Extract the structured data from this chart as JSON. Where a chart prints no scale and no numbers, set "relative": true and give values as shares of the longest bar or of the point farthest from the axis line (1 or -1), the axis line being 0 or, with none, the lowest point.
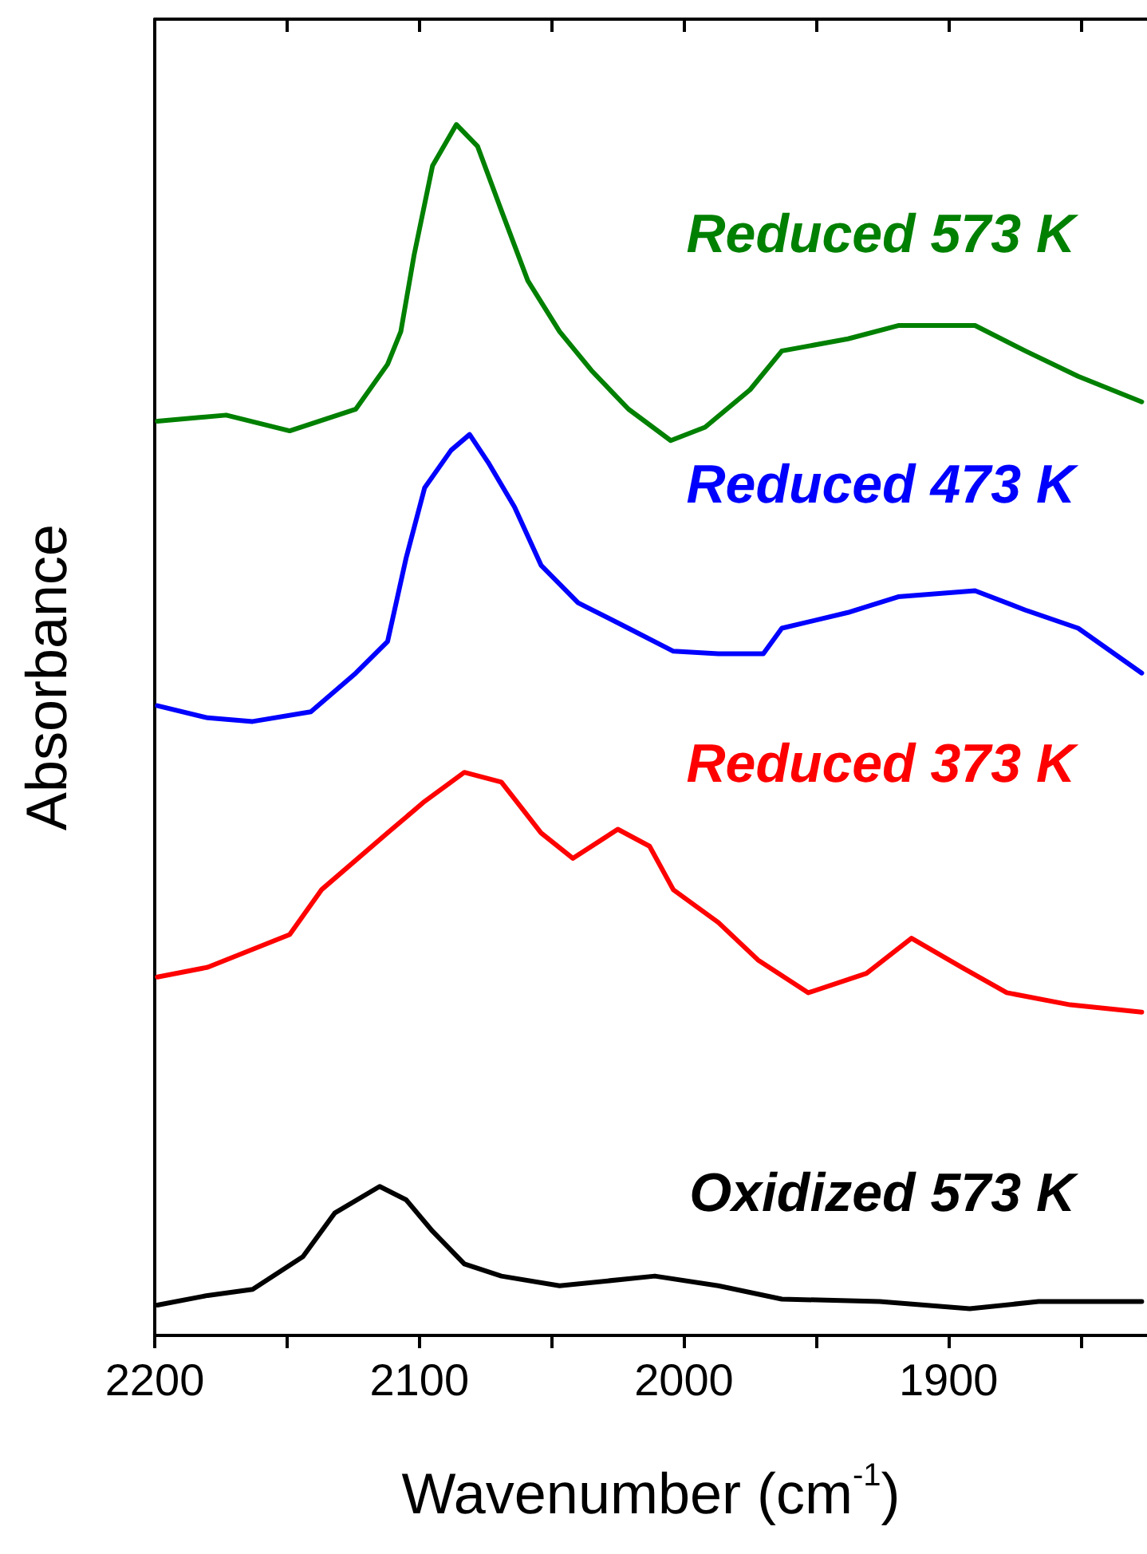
{
  "chart_data": {
    "type": "line",
    "xlabel": "Wavenumber (cm$^{-1}$)",
    "ylabel": "Absorbance",
    "relative": true,
    "xlim": [
      2200,
      1825
    ],
    "xticks": [
      2200,
      {
        "value": 2150,
        "label": null
      },
      2100,
      {
        "value": 2050,
        "label": null
      },
      2000,
      {
        "value": 1950,
        "label": null
      },
      1900,
      {
        "value": 1850,
        "label": null
      }
    ],
    "grid": false,
    "legend": false,
    "marker": "none",
    "line_style": "solid",
    "series": [
      {
        "name": "Reduced 573 K",
        "color": "#008000",
        "x": [
          2199,
          2173,
          2149,
          2124,
          2112,
          2107,
          2102,
          2095,
          2086,
          2078,
          2069,
          2059,
          2047,
          2035,
          2021,
          2005,
          1992,
          1975,
          1963,
          1938,
          1919,
          1890,
          1871,
          1851,
          1827
        ],
        "values": [
          0.755,
          0.76,
          0.747,
          0.765,
          0.802,
          0.829,
          0.892,
          0.966,
          1,
          0.982,
          0.929,
          0.871,
          0.829,
          0.797,
          0.765,
          0.739,
          0.75,
          0.781,
          0.813,
          0.823,
          0.834,
          0.834,
          0.813,
          0.792,
          0.771
        ]
      },
      {
        "name": "Reduced 473 K",
        "color": "#0000ff",
        "x": [
          2199,
          2180,
          2163,
          2141,
          2124,
          2112,
          2105,
          2098,
          2088,
          2081,
          2074,
          2064,
          2054,
          2040,
          2021,
          2004,
          1987,
          1970,
          1963,
          1938,
          1919,
          1890,
          1871,
          1851,
          1827
        ],
        "values": [
          0.52,
          0.51,
          0.507,
          0.515,
          0.547,
          0.573,
          0.642,
          0.7,
          0.731,
          0.744,
          0.721,
          0.684,
          0.636,
          0.605,
          0.584,
          0.565,
          0.563,
          0.563,
          0.584,
          0.597,
          0.61,
          0.615,
          0.599,
          0.584,
          0.547
        ]
      },
      {
        "name": "Reduced 373 K",
        "color": "#ff0000",
        "x": [
          2199,
          2180,
          2149,
          2137,
          2112,
          2098,
          2083,
          2069,
          2054,
          2042,
          2025,
          2013,
          2004,
          1987,
          1972,
          1953,
          1931,
          1914,
          1895,
          1878,
          1854,
          1827
        ],
        "values": [
          0.296,
          0.304,
          0.331,
          0.368,
          0.415,
          0.441,
          0.465,
          0.457,
          0.415,
          0.394,
          0.418,
          0.404,
          0.368,
          0.341,
          0.31,
          0.283,
          0.299,
          0.328,
          0.304,
          0.283,
          0.273,
          0.267
        ]
      },
      {
        "name": "Oxidized 573 K",
        "color": "#000000",
        "x": [
          2199,
          2180,
          2163,
          2144,
          2132,
          2115,
          2105,
          2095,
          2083,
          2069,
          2047,
          2011,
          1987,
          1963,
          1926,
          1892,
          1866,
          1827
        ],
        "values": [
          0.025,
          0.033,
          0.038,
          0.065,
          0.101,
          0.123,
          0.112,
          0.086,
          0.059,
          0.049,
          0.041,
          0.049,
          0.041,
          0.03,
          0.028,
          0.022,
          0.028,
          0.028
        ]
      }
    ]
  }
}
